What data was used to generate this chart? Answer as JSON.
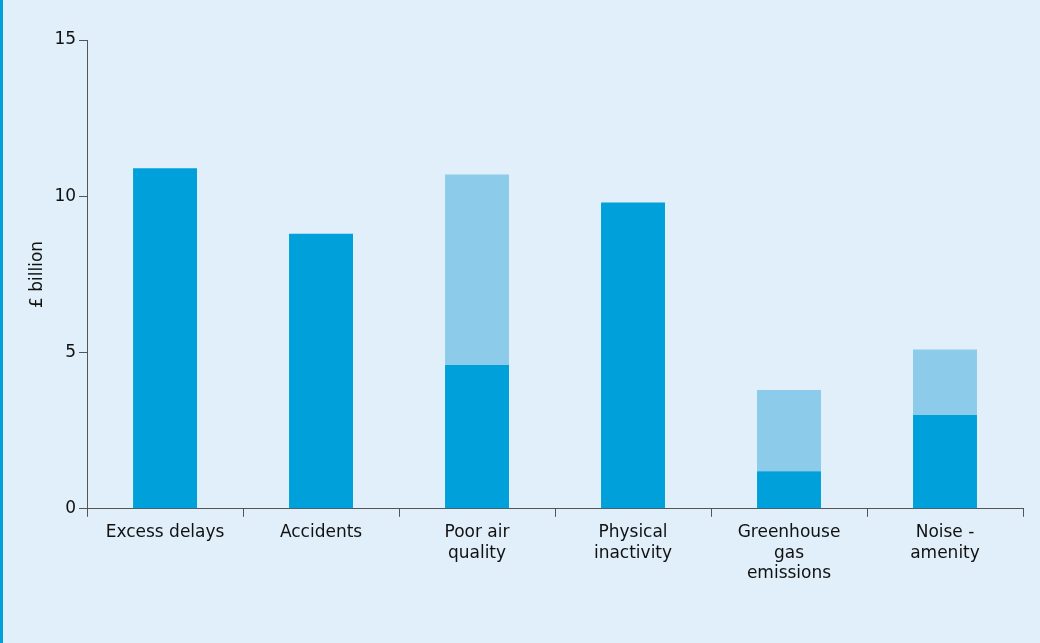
{
  "chart_data": {
    "type": "bar",
    "ylabel": "£ billion",
    "categories": [
      "Excess delays",
      "Accidents",
      "Poor air\nquality",
      "Physical\ninactivity",
      "Greenhouse\ngas\nemissions",
      "Noise -\namenity"
    ],
    "stacked": true,
    "series": [
      {
        "color": "#00a0da",
        "values": [
          10.9,
          8.8,
          4.6,
          9.8,
          1.2,
          3.0
        ]
      },
      {
        "color": "#8ccbea",
        "values": [
          null,
          null,
          6.1,
          null,
          2.6,
          2.1
        ]
      }
    ],
    "ylim": [
      0,
      15
    ],
    "yticks": [
      0,
      5,
      10,
      15
    ],
    "grid": false,
    "legend": false
  }
}
